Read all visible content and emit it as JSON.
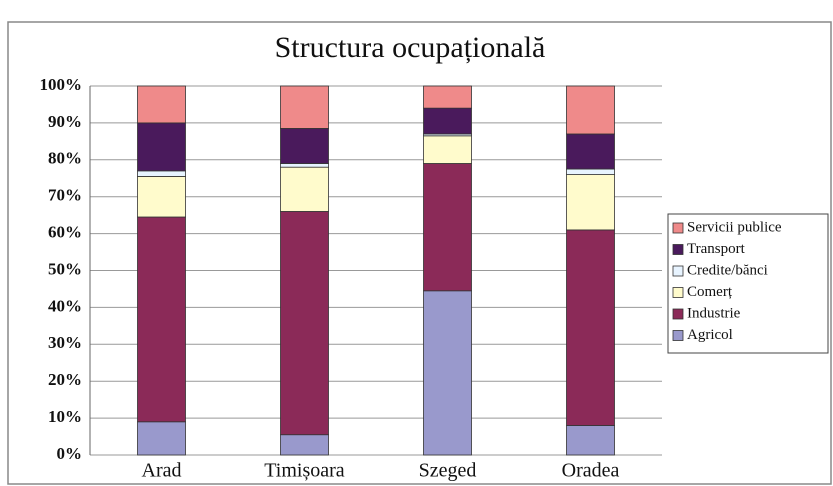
{
  "chart_data": {
    "type": "stacked_bar",
    "title": "Structura ocupațională",
    "categories": [
      "Arad",
      "Timișoara",
      "Szeged",
      "Oradea"
    ],
    "series": [
      {
        "name": "Agricol",
        "color": "#9999cc",
        "values": [
          9,
          5.5,
          44.5,
          8
        ]
      },
      {
        "name": "Industrie",
        "color": "#8b2a58",
        "values": [
          55.5,
          60.5,
          34.5,
          53
        ]
      },
      {
        "name": "Comerț",
        "color": "#fffbcc",
        "values": [
          11,
          12,
          7.5,
          15
        ]
      },
      {
        "name": "Credite/bănci",
        "color": "#e8f4ff",
        "values": [
          1.5,
          1,
          0.5,
          1.5
        ]
      },
      {
        "name": "Transport",
        "color": "#4a1a5c",
        "values": [
          13,
          9.5,
          7,
          9.5
        ]
      },
      {
        "name": "Servicii publice",
        "color": "#ef8a8a",
        "values": [
          10,
          11.5,
          6,
          13
        ]
      }
    ],
    "ylim": [
      0,
      100
    ],
    "yticks": [
      {
        "value": 0,
        "label": "0%"
      },
      {
        "value": 10,
        "label": "10%"
      },
      {
        "value": 20,
        "label": "20%"
      },
      {
        "value": 30,
        "label": "30%"
      },
      {
        "value": 40,
        "label": "40%"
      },
      {
        "value": 50,
        "label": "50%"
      },
      {
        "value": 60,
        "label": "60%"
      },
      {
        "value": 70,
        "label": "70%"
      },
      {
        "value": 80,
        "label": "80%"
      },
      {
        "value": 90,
        "label": "90%"
      },
      {
        "value": 100,
        "label": "100%"
      }
    ],
    "grid": true,
    "legend": "right"
  }
}
